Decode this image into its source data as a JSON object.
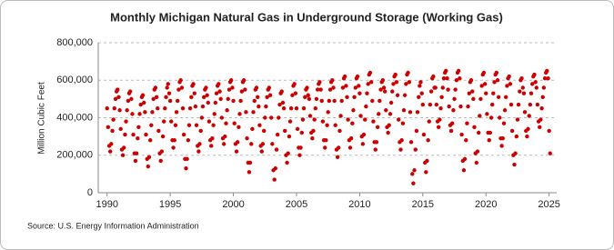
{
  "chart_data": {
    "type": "scatter",
    "title": "Monthly Michigan Natural Gas in Underground Storage (Working Gas)",
    "y_label": "Million Cubic Feet",
    "source": "Source: U.S. Energy Information Administration",
    "color": "#cc0000",
    "grid": true,
    "xlim": [
      1989.3,
      2025.6
    ],
    "xticks": [
      1990,
      1995,
      2000,
      2005,
      2010,
      2015,
      2020,
      2025
    ],
    "ylim": [
      0,
      800000
    ],
    "yticks": [
      {
        "value": 0,
        "label": "0"
      },
      {
        "value": 200000,
        "label": "200,000"
      },
      {
        "value": 400000,
        "label": "400,000"
      },
      {
        "value": 600000,
        "label": "600,000"
      },
      {
        "value": 800000,
        "label": "800,000"
      }
    ],
    "x": [
      1990.0,
      1990.08,
      1990.17,
      1990.25,
      1990.33,
      1990.42,
      1990.5,
      1990.58,
      1990.67,
      1990.75,
      1990.83,
      1990.92,
      1991.0,
      1991.08,
      1991.17,
      1991.25,
      1991.33,
      1991.42,
      1991.5,
      1991.58,
      1991.67,
      1991.75,
      1991.83,
      1991.92,
      1992.0,
      1992.08,
      1992.17,
      1992.25,
      1992.33,
      1992.42,
      1992.5,
      1992.58,
      1992.67,
      1992.75,
      1992.83,
      1992.92,
      1993.0,
      1993.08,
      1993.17,
      1993.25,
      1993.33,
      1993.42,
      1993.5,
      1993.58,
      1993.67,
      1993.75,
      1993.83,
      1993.92,
      1994.0,
      1994.08,
      1994.17,
      1994.25,
      1994.33,
      1994.42,
      1994.5,
      1994.58,
      1994.67,
      1994.75,
      1994.83,
      1994.92,
      1995.0,
      1995.08,
      1995.17,
      1995.25,
      1995.33,
      1995.42,
      1995.5,
      1995.58,
      1995.67,
      1995.75,
      1995.83,
      1995.92,
      1996.0,
      1996.08,
      1996.17,
      1996.25,
      1996.33,
      1996.42,
      1996.5,
      1996.58,
      1996.67,
      1996.75,
      1996.83,
      1996.92,
      1997.0,
      1997.08,
      1997.17,
      1997.25,
      1997.33,
      1997.42,
      1997.5,
      1997.58,
      1997.67,
      1997.75,
      1997.83,
      1997.92,
      1998.0,
      1998.08,
      1998.17,
      1998.25,
      1998.33,
      1998.42,
      1998.5,
      1998.58,
      1998.67,
      1998.75,
      1998.83,
      1998.92,
      1999.0,
      1999.08,
      1999.17,
      1999.25,
      1999.33,
      1999.42,
      1999.5,
      1999.58,
      1999.67,
      1999.75,
      1999.83,
      1999.92,
      2000.0,
      2000.08,
      2000.17,
      2000.25,
      2000.33,
      2000.42,
      2000.5,
      2000.58,
      2000.67,
      2000.75,
      2000.83,
      2000.92,
      2001.0,
      2001.08,
      2001.17,
      2001.25,
      2001.33,
      2001.42,
      2001.5,
      2001.58,
      2001.67,
      2001.75,
      2001.83,
      2001.92,
      2002.0,
      2002.08,
      2002.17,
      2002.25,
      2002.33,
      2002.42,
      2002.5,
      2002.58,
      2002.67,
      2002.75,
      2002.83,
      2002.92,
      2003.0,
      2003.08,
      2003.17,
      2003.25,
      2003.33,
      2003.42,
      2003.5,
      2003.58,
      2003.67,
      2003.75,
      2003.83,
      2003.92,
      2004.0,
      2004.08,
      2004.17,
      2004.25,
      2004.33,
      2004.42,
      2004.5,
      2004.58,
      2004.67,
      2004.75,
      2004.83,
      2004.92,
      2005.0,
      2005.08,
      2005.17,
      2005.25,
      2005.33,
      2005.42,
      2005.5,
      2005.58,
      2005.67,
      2005.75,
      2005.83,
      2005.92,
      2006.0,
      2006.08,
      2006.17,
      2006.25,
      2006.33,
      2006.42,
      2006.5,
      2006.58,
      2006.67,
      2006.75,
      2006.83,
      2006.92,
      2007.0,
      2007.08,
      2007.17,
      2007.25,
      2007.33,
      2007.42,
      2007.5,
      2007.58,
      2007.67,
      2007.75,
      2007.83,
      2007.92,
      2008.0,
      2008.08,
      2008.17,
      2008.25,
      2008.33,
      2008.42,
      2008.5,
      2008.58,
      2008.67,
      2008.75,
      2008.83,
      2008.92,
      2009.0,
      2009.08,
      2009.17,
      2009.25,
      2009.33,
      2009.42,
      2009.5,
      2009.58,
      2009.67,
      2009.75,
      2009.83,
      2009.92,
      2010.0,
      2010.08,
      2010.17,
      2010.25,
      2010.33,
      2010.42,
      2010.5,
      2010.58,
      2010.67,
      2010.75,
      2010.83,
      2010.92,
      2011.0,
      2011.08,
      2011.17,
      2011.25,
      2011.33,
      2011.42,
      2011.5,
      2011.58,
      2011.67,
      2011.75,
      2011.83,
      2011.92,
      2012.0,
      2012.08,
      2012.17,
      2012.25,
      2012.33,
      2012.42,
      2012.5,
      2012.58,
      2012.67,
      2012.75,
      2012.83,
      2012.92,
      2013.0,
      2013.08,
      2013.17,
      2013.25,
      2013.33,
      2013.42,
      2013.5,
      2013.58,
      2013.67,
      2013.75,
      2013.83,
      2013.92,
      2014.0,
      2014.08,
      2014.17,
      2014.25,
      2014.33,
      2014.42,
      2014.5,
      2014.58,
      2014.67,
      2014.75,
      2014.83,
      2014.92,
      2015.0,
      2015.08,
      2015.17,
      2015.25,
      2015.33,
      2015.42,
      2015.5,
      2015.58,
      2015.67,
      2015.75,
      2015.83,
      2015.92,
      2016.0,
      2016.08,
      2016.17,
      2016.25,
      2016.33,
      2016.42,
      2016.5,
      2016.58,
      2016.67,
      2016.75,
      2016.83,
      2016.92,
      2017.0,
      2017.08,
      2017.17,
      2017.25,
      2017.33,
      2017.42,
      2017.5,
      2017.58,
      2017.67,
      2017.75,
      2017.83,
      2017.92,
      2018.0,
      2018.08,
      2018.17,
      2018.25,
      2018.33,
      2018.42,
      2018.5,
      2018.58,
      2018.67,
      2018.75,
      2018.83,
      2018.92,
      2019.0,
      2019.08,
      2019.17,
      2019.25,
      2019.33,
      2019.42,
      2019.5,
      2019.58,
      2019.67,
      2019.75,
      2019.83,
      2019.92,
      2020.0,
      2020.08,
      2020.17,
      2020.25,
      2020.33,
      2020.42,
      2020.5,
      2020.58,
      2020.67,
      2020.75,
      2020.83,
      2020.92,
      2021.0,
      2021.08,
      2021.17,
      2021.25,
      2021.33,
      2021.42,
      2021.5,
      2021.58,
      2021.67,
      2021.75,
      2021.83,
      2021.92,
      2022.0,
      2022.08,
      2022.17,
      2022.25,
      2022.33,
      2022.42,
      2022.5,
      2022.58,
      2022.67,
      2022.75,
      2022.83,
      2022.92,
      2023.0,
      2023.08,
      2023.17,
      2023.25,
      2023.33,
      2023.42,
      2023.5,
      2023.58,
      2023.67,
      2023.75,
      2023.83,
      2023.92,
      2024.0,
      2024.08,
      2024.17,
      2024.25,
      2024.33,
      2024.42,
      2024.5,
      2024.58,
      2024.67,
      2024.75,
      2024.83,
      2024.92,
      2025.0,
      2025.08
    ],
    "values": [
      450000,
      350000,
      250000,
      220000,
      260000,
      330000,
      390000,
      450000,
      500000,
      540000,
      550000,
      510000,
      440000,
      340000,
      230000,
      200000,
      240000,
      310000,
      380000,
      440000,
      490000,
      530000,
      540000,
      500000,
      420000,
      310000,
      210000,
      170000,
      210000,
      290000,
      350000,
      420000,
      470000,
      510000,
      520000,
      480000,
      430000,
      310000,
      180000,
      140000,
      190000,
      280000,
      360000,
      430000,
      500000,
      550000,
      560000,
      510000,
      450000,
      330000,
      210000,
      170000,
      220000,
      300000,
      380000,
      450000,
      510000,
      560000,
      580000,
      530000,
      490000,
      380000,
      280000,
      240000,
      280000,
      360000,
      430000,
      490000,
      550000,
      590000,
      600000,
      560000,
      450000,
      310000,
      180000,
      130000,
      180000,
      280000,
      360000,
      450000,
      510000,
      570000,
      580000,
      530000,
      460000,
      360000,
      250000,
      220000,
      260000,
      330000,
      400000,
      460000,
      510000,
      550000,
      560000,
      520000,
      480000,
      380000,
      280000,
      250000,
      290000,
      360000,
      420000,
      480000,
      530000,
      570000,
      580000,
      540000,
      500000,
      400000,
      290000,
      260000,
      300000,
      370000,
      440000,
      500000,
      550000,
      590000,
      600000,
      560000,
      490000,
      370000,
      260000,
      220000,
      270000,
      350000,
      420000,
      490000,
      540000,
      590000,
      600000,
      550000,
      430000,
      290000,
      160000,
      110000,
      160000,
      260000,
      340000,
      430000,
      490000,
      550000,
      560000,
      510000,
      460000,
      360000,
      250000,
      220000,
      260000,
      330000,
      400000,
      460000,
      510000,
      550000,
      560000,
      520000,
      400000,
      260000,
      120000,
      70000,
      130000,
      230000,
      310000,
      400000,
      470000,
      530000,
      540000,
      480000,
      450000,
      330000,
      200000,
      160000,
      210000,
      300000,
      380000,
      450000,
      520000,
      570000,
      580000,
      530000,
      450000,
      340000,
      240000,
      200000,
      240000,
      320000,
      390000,
      450000,
      510000,
      550000,
      560000,
      520000,
      500000,
      410000,
      320000,
      290000,
      330000,
      390000,
      450000,
      500000,
      550000,
      580000,
      590000,
      550000,
      490000,
      380000,
      280000,
      240000,
      280000,
      360000,
      430000,
      490000,
      550000,
      590000,
      600000,
      560000,
      490000,
      360000,
      230000,
      190000,
      240000,
      330000,
      410000,
      490000,
      560000,
      610000,
      620000,
      570000,
      510000,
      390000,
      280000,
      240000,
      290000,
      370000,
      440000,
      510000,
      560000,
      610000,
      620000,
      570000,
      530000,
      410000,
      300000,
      260000,
      310000,
      390000,
      460000,
      530000,
      580000,
      630000,
      640000,
      590000,
      490000,
      380000,
      270000,
      230000,
      270000,
      350000,
      420000,
      490000,
      550000,
      590000,
      600000,
      560000,
      540000,
      440000,
      350000,
      320000,
      360000,
      420000,
      480000,
      540000,
      580000,
      620000,
      630000,
      590000,
      520000,
      390000,
      270000,
      230000,
      280000,
      370000,
      440000,
      520000,
      580000,
      630000,
      640000,
      590000,
      430000,
      270000,
      100000,
      50000,
      120000,
      230000,
      330000,
      430000,
      510000,
      570000,
      590000,
      530000,
      470000,
      310000,
      160000,
      110000,
      170000,
      280000,
      380000,
      470000,
      540000,
      610000,
      620000,
      560000,
      560000,
      470000,
      380000,
      350000,
      390000,
      450000,
      510000,
      560000,
      610000,
      640000,
      650000,
      610000,
      550000,
      460000,
      360000,
      330000,
      370000,
      440000,
      500000,
      550000,
      600000,
      640000,
      650000,
      610000,
      460000,
      310000,
      170000,
      120000,
      180000,
      280000,
      370000,
      460000,
      530000,
      590000,
      600000,
      540000,
      500000,
      350000,
      210000,
      160000,
      220000,
      320000,
      410000,
      500000,
      570000,
      630000,
      640000,
      580000,
      530000,
      420000,
      320000,
      280000,
      320000,
      400000,
      470000,
      530000,
      590000,
      630000,
      640000,
      600000,
      510000,
      400000,
      290000,
      250000,
      290000,
      370000,
      440000,
      510000,
      570000,
      610000,
      620000,
      580000,
      470000,
      330000,
      200000,
      150000,
      210000,
      300000,
      390000,
      470000,
      540000,
      600000,
      610000,
      560000,
      530000,
      430000,
      330000,
      300000,
      340000,
      410000,
      470000,
      530000,
      580000,
      620000,
      630000,
      590000,
      560000,
      470000,
      380000,
      350000,
      390000,
      450000,
      510000,
      560000,
      610000,
      640000,
      650000,
      610000,
      330000,
      210000
    ]
  }
}
